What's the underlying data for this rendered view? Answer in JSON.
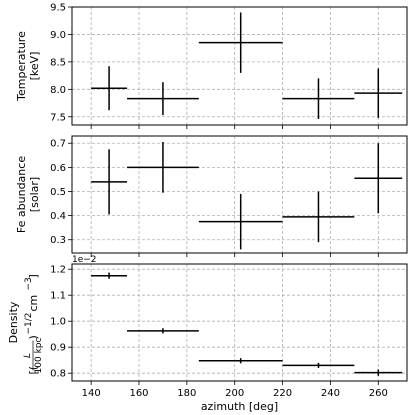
{
  "chart_data": [
    {
      "type": "scatter",
      "ylabel_lines": [
        "Temperature",
        "[keV]"
      ],
      "ylim": [
        7.35,
        9.5
      ],
      "yticks": [
        7.5,
        8.0,
        8.5,
        9.0,
        9.5
      ],
      "ytick_labels": [
        "7.5",
        "8.0",
        "8.5",
        "9.0",
        "9.5"
      ],
      "xlim": [
        132,
        272
      ],
      "grid": true,
      "points": [
        {
          "x": 147.5,
          "xerr": 7.5,
          "y": 8.02,
          "yerr": 0.4
        },
        {
          "x": 170,
          "xerr": 15,
          "y": 7.83,
          "yerr": 0.3
        },
        {
          "x": 202.5,
          "xerr": 17.5,
          "y": 8.85,
          "yerr": 0.55
        },
        {
          "x": 235,
          "xerr": 15,
          "y": 7.83,
          "yerr": 0.37
        },
        {
          "x": 260,
          "xerr": 10,
          "y": 7.93,
          "yerr": 0.45
        }
      ]
    },
    {
      "type": "scatter",
      "ylabel_lines": [
        "Fe abundance",
        "[solar]"
      ],
      "ylim": [
        0.245,
        0.73
      ],
      "yticks": [
        0.3,
        0.4,
        0.5,
        0.6,
        0.7
      ],
      "ytick_labels": [
        "0.3",
        "0.4",
        "0.5",
        "0.6",
        "0.7"
      ],
      "xlim": [
        132,
        272
      ],
      "grid": true,
      "points": [
        {
          "x": 147.5,
          "xerr": 7.5,
          "y": 0.54,
          "yerr": 0.135
        },
        {
          "x": 170,
          "xerr": 15,
          "y": 0.6,
          "yerr": 0.105
        },
        {
          "x": 202.5,
          "xerr": 17.5,
          "y": 0.375,
          "yerr": 0.115
        },
        {
          "x": 235,
          "xerr": 15,
          "y": 0.395,
          "yerr": 0.105
        },
        {
          "x": 260,
          "xerr": 10,
          "y": 0.555,
          "yerr": 0.145
        }
      ]
    },
    {
      "type": "scatter",
      "ylabel_lines": [
        "Density",
        "[(L / 100 kpc)^-1/2 cm^-3]"
      ],
      "ylabel_parts": {
        "pre": "[(",
        "frac_num": "L",
        "frac_den": "100 kpc",
        "post_paren": ")",
        "exp1": "−1/2",
        "unit": " cm",
        "exp2": "−3",
        "close": "]"
      },
      "sci_label": "1e−2",
      "ylim": [
        0.77,
        1.22
      ],
      "yticks": [
        0.8,
        0.9,
        1.0,
        1.1,
        1.2
      ],
      "ytick_labels": [
        "0.8",
        "0.9",
        "1.0",
        "1.1",
        "1.2"
      ],
      "xlim": [
        132,
        272
      ],
      "xticks": [
        140,
        160,
        180,
        200,
        220,
        240,
        260
      ],
      "xtick_labels": [
        "140",
        "160",
        "180",
        "200",
        "220",
        "240",
        "260"
      ],
      "xlabel": "azimuth [deg]",
      "grid": true,
      "points": [
        {
          "x": 147.5,
          "xerr": 7.5,
          "y": 1.175,
          "yerr": 0.012
        },
        {
          "x": 170,
          "xerr": 15,
          "y": 0.963,
          "yerr": 0.01
        },
        {
          "x": 202.5,
          "xerr": 17.5,
          "y": 0.848,
          "yerr": 0.01
        },
        {
          "x": 235,
          "xerr": 15,
          "y": 0.83,
          "yerr": 0.01
        },
        {
          "x": 260,
          "xerr": 10,
          "y": 0.802,
          "yerr": 0.012
        }
      ]
    }
  ]
}
